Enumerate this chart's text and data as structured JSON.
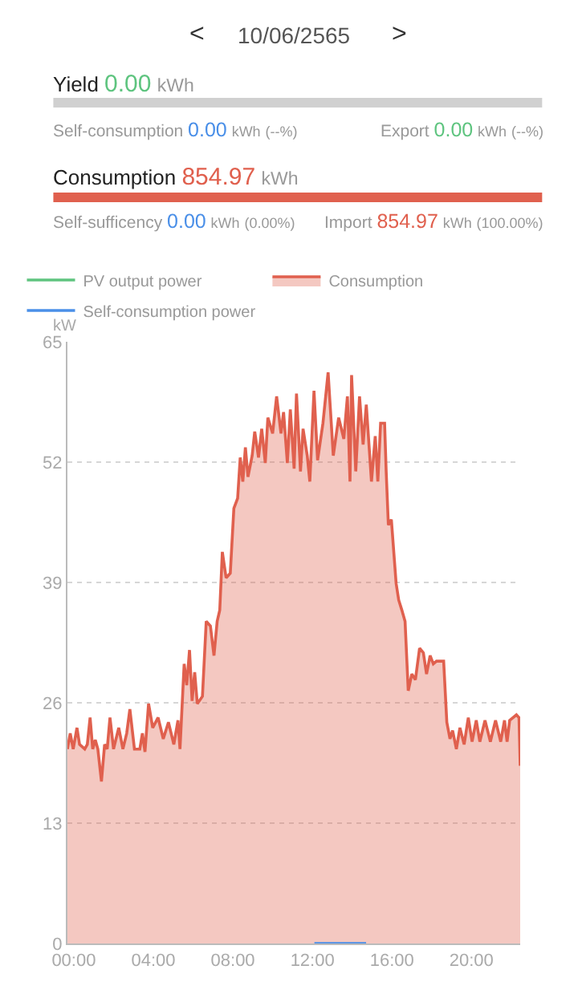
{
  "chart_data": {
    "type": "area",
    "title": "10/06/2565",
    "ylabel": "kW",
    "annotations": [
      "<",
      ">",
      "Yield 0.00 kWh",
      "Self-consumption 0.00 kWh (--%)",
      "Export 0.00 kWh (--%)",
      "Consumption 854.97 kWh",
      "Self-sufficency 0.00 kWh (0.00%)",
      "Import 854.97 kWh (100.00%)"
    ],
    "xlim": [
      -0.32,
      22.45
    ],
    "xticks": [
      {
        "value": 0,
        "label": "00:00"
      },
      {
        "value": 4,
        "label": "04:00"
      },
      {
        "value": 8,
        "label": "08:00"
      },
      {
        "value": 12,
        "label": "12:00"
      },
      {
        "value": 16,
        "label": "16:00"
      },
      {
        "value": 20,
        "label": "20:00"
      }
    ],
    "ylim": [
      0,
      65
    ],
    "yticks": [
      0,
      13,
      26,
      39,
      52,
      65
    ],
    "grid": "y",
    "legend": "top",
    "marker": "none",
    "series": [
      {
        "name": "PV output power",
        "color": "#5ec47f",
        "type": "line"
      },
      {
        "name": "Consumption",
        "color": "#e0604e",
        "x": [
          -0.32,
          -0.18,
          -0.03,
          0.16,
          0.29,
          0.55,
          0.68,
          0.82,
          0.95,
          1.08,
          1.21,
          1.39,
          1.55,
          1.68,
          1.82,
          2.0,
          2.26,
          2.47,
          2.66,
          2.82,
          3.05,
          3.32,
          3.45,
          3.58,
          3.76,
          3.97,
          4.24,
          4.5,
          4.76,
          5.03,
          5.24,
          5.34,
          5.55,
          5.68,
          5.82,
          5.95,
          6.08,
          6.21,
          6.47,
          6.66,
          6.87,
          7.05,
          7.21,
          7.34,
          7.47,
          7.66,
          7.87,
          8.05,
          8.24,
          8.37,
          8.5,
          8.63,
          8.76,
          8.97,
          9.1,
          9.29,
          9.45,
          9.63,
          9.76,
          10.0,
          10.2,
          10.42,
          10.55,
          10.74,
          10.89,
          11.08,
          11.2,
          11.4,
          11.53,
          11.74,
          11.87,
          12.08,
          12.26,
          12.53,
          12.79,
          13.05,
          13.32,
          13.58,
          13.76,
          13.89,
          13.97,
          14.18,
          14.37,
          14.55,
          14.71,
          14.97,
          15.16,
          15.29,
          15.43,
          15.63,
          15.71,
          15.82,
          15.97,
          16.21,
          16.34,
          16.5,
          16.66,
          16.82,
          17.0,
          17.18,
          17.39,
          17.58,
          17.74,
          17.92,
          18.08,
          18.24,
          18.6,
          18.76,
          18.92,
          19.05,
          19.24,
          19.42,
          19.63,
          19.84,
          20.03,
          20.24,
          20.42,
          20.68,
          20.95,
          21.21,
          21.47,
          21.66,
          21.79,
          21.92,
          22.26,
          22.39,
          22.45
        ],
        "values": [
          21.0,
          22.7,
          21.0,
          23.3,
          21.5,
          21.0,
          21.5,
          24.4,
          21.0,
          22.0,
          21.0,
          17.5,
          21.5,
          21.0,
          24.4,
          21.0,
          23.3,
          21.0,
          22.7,
          25.3,
          21.0,
          21.0,
          22.7,
          20.7,
          25.9,
          23.3,
          24.4,
          22.1,
          23.9,
          21.5,
          24.1,
          21.0,
          30.2,
          27.9,
          31.7,
          26.2,
          29.3,
          25.9,
          26.7,
          34.8,
          34.3,
          31.1,
          34.8,
          36.0,
          42.3,
          39.5,
          40.0,
          47.0,
          48.1,
          52.5,
          49.9,
          53.6,
          50.4,
          52.7,
          55.3,
          52.5,
          55.6,
          51.9,
          56.8,
          55.1,
          59.1,
          55.1,
          57.4,
          51.9,
          57.7,
          51.3,
          59.4,
          51.0,
          55.6,
          52.7,
          49.9,
          59.7,
          52.2,
          56.2,
          61.7,
          52.7,
          56.8,
          54.5,
          59.1,
          49.9,
          61.4,
          51.0,
          59.1,
          53.9,
          58.2,
          49.9,
          54.8,
          49.9,
          56.2,
          56.2,
          51.0,
          45.2,
          45.8,
          38.9,
          37.1,
          36.0,
          34.8,
          27.3,
          29.1,
          28.5,
          31.9,
          31.4,
          29.1,
          31.1,
          30.2,
          30.5,
          30.5,
          23.9,
          22.1,
          23.0,
          21.0,
          23.3,
          21.5,
          24.4,
          21.8,
          24.1,
          21.8,
          24.1,
          21.8,
          24.1,
          21.8,
          24.1,
          21.8,
          24.1,
          24.7,
          24.4,
          19.2
        ]
      },
      {
        "name": "Self-consumption power",
        "color": "#4a8fe8",
        "type": "line",
        "x": [
          12.1,
          14.7
        ],
        "values": [
          0,
          0
        ]
      }
    ]
  }
}
